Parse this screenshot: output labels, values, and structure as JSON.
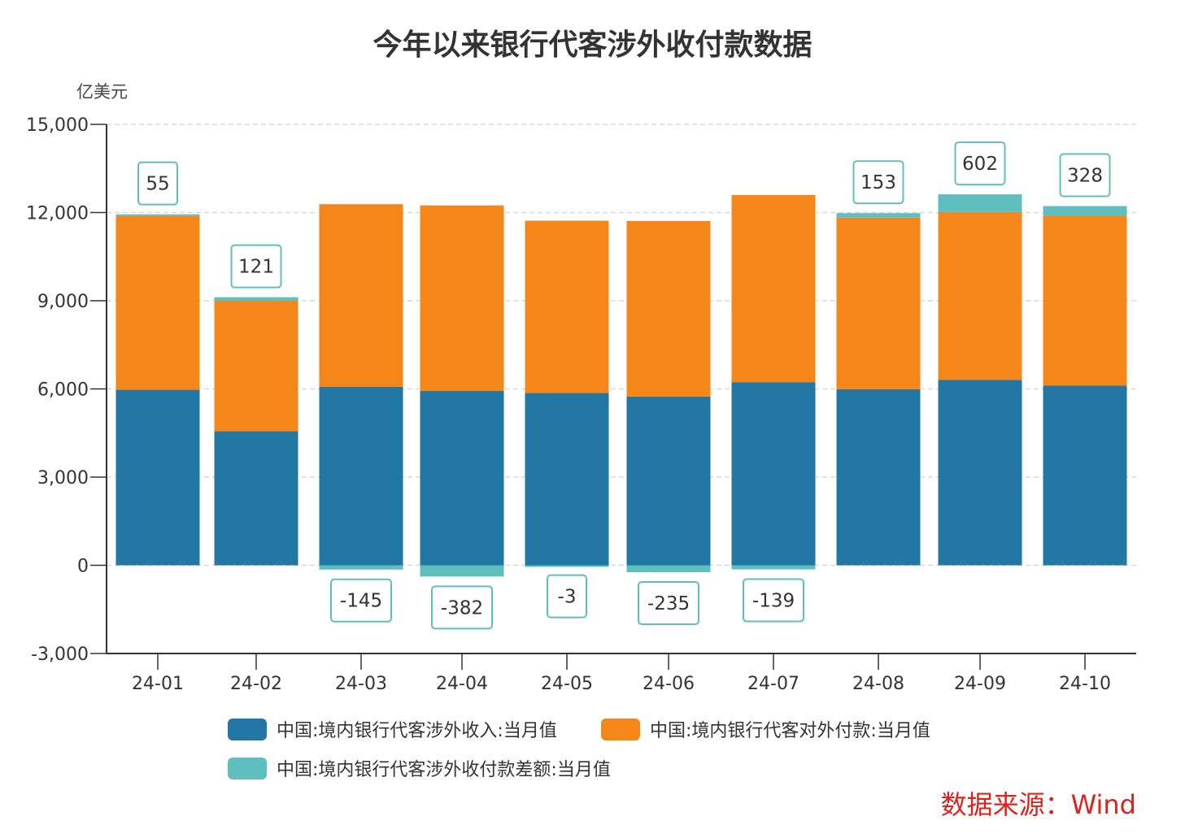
{
  "chart_data": {
    "type": "bar",
    "stacked": true,
    "title": "今年以来银行代客涉外收付款数据",
    "ylabel": "亿美元",
    "ylim": [
      -3000,
      15000
    ],
    "yticks": [
      -3000,
      0,
      3000,
      6000,
      9000,
      12000,
      15000
    ],
    "ytick_labels": [
      "-3,000",
      "0",
      "3,000",
      "6,000",
      "9,000",
      "12,000",
      "15,000"
    ],
    "grid": true,
    "legend_position": "bottom",
    "categories": [
      "24-01",
      "24-02",
      "24-03",
      "24-04",
      "24-05",
      "24-06",
      "24-07",
      "24-08",
      "24-09",
      "24-10"
    ],
    "series": [
      {
        "name": "中国:境内银行代客涉外收入:当月值",
        "color": "#2277a4",
        "values": [
          5970,
          4560,
          6070,
          5930,
          5860,
          5740,
          6230,
          5990,
          6310,
          6110
        ]
      },
      {
        "name": "中国:境内银行代客对外付款:当月值",
        "color": "#f5871a",
        "values": [
          5915,
          4439,
          6215,
          6312,
          5863,
          5975,
          6369,
          5837,
          5708,
          5782
        ]
      },
      {
        "name": "中国:境内银行代客涉外收付款差额:当月值",
        "color": "#5fbfbf",
        "values": [
          55,
          121,
          -145,
          -382,
          -3,
          -235,
          -139,
          153,
          602,
          328
        ]
      }
    ]
  },
  "source": "数据来源：Wind"
}
